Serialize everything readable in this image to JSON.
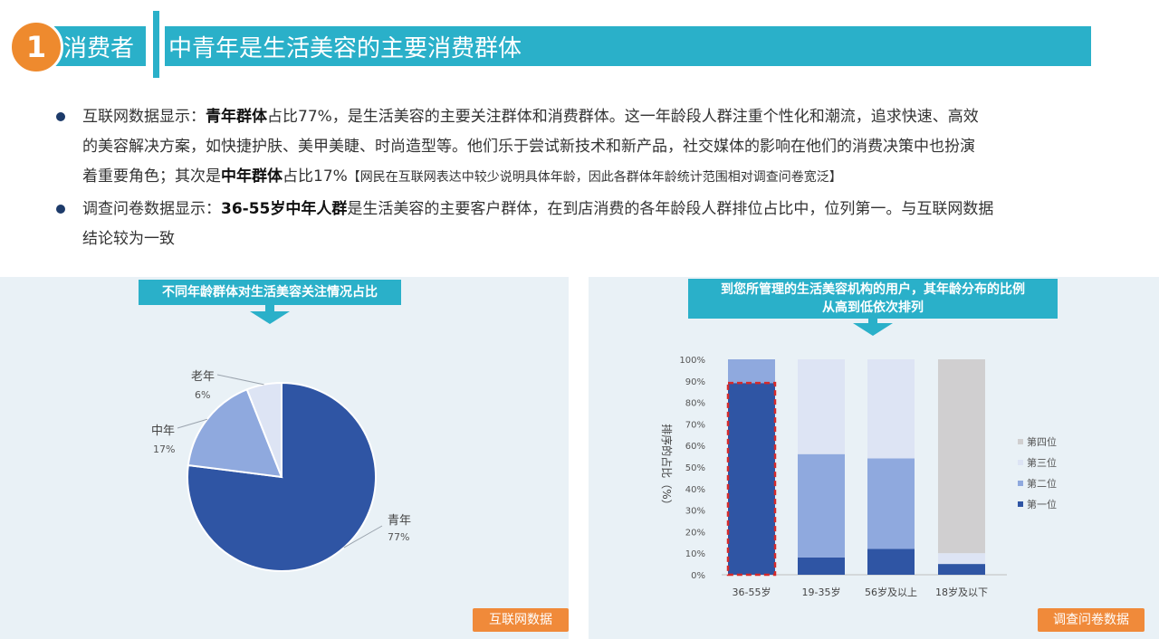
{
  "header": {
    "badge_number": "1",
    "section": "消费者",
    "title": "中青年是生活美容的主要消费群体"
  },
  "paragraphs": {
    "p1_prefix": "互联网数据显示：",
    "p1_bold1": "青年群体",
    "p1_mid1": "占比77%，是生活美容的主要关注群体和消费群体。这一年龄段人群注重个性化和潮流，追求快速、高效",
    "p1_line2": "的美容解决方案，如快捷护肤、美甲美睫、时尚造型等。他们乐于尝试新技术和新产品，社交媒体的影响在他们的消费决策中也扮演",
    "p1_line3_pre": "着重要角色；其次是",
    "p1_bold2": "中年群体",
    "p1_line3_mid": "占比17%",
    "p1_note": "【网民在互联网表达中较少说明具体年龄，因此各群体年龄统计范围相对调查问卷宽泛】",
    "p2_prefix": "调查问卷数据显示：",
    "p2_bold": "36-55岁中年人群",
    "p2_rest": "是生活美容的主要客户群体，在到店消费的各年龄段人群排位占比中，位列第一。与互联网数据",
    "p2_line2": "结论较为一致"
  },
  "left_panel": {
    "banner": "不同年龄群体对生活美容关注情况占比",
    "tag": "互联网数据"
  },
  "right_panel": {
    "banner_line1": "到您所管理的生活美容机构的用户，其年龄分布的比例",
    "banner_line2": "从高到低依次排列",
    "tag": "调查问卷数据"
  },
  "colors": {
    "teal": "#2ab0c9",
    "orange": "#f08a3a",
    "first": "#2f55a4",
    "second": "#8fa9de",
    "third": "#dde4f4",
    "fourth": "#d0cfd0",
    "highlight": "#d62a2a"
  },
  "chart_data": [
    {
      "type": "pie",
      "categories": [
        "青年",
        "中年",
        "老年"
      ],
      "values": [
        77,
        17,
        6
      ],
      "labels": [
        "77%",
        "17%",
        "6%"
      ]
    },
    {
      "type": "bar",
      "stacked": true,
      "categories": [
        "36-55岁",
        "19-35岁",
        "56岁及以上",
        "18岁及以下"
      ],
      "ylabel": "排序的占比（%）",
      "ylim": [
        0,
        100
      ],
      "yticks": [
        "0%",
        "10%",
        "20%",
        "30%",
        "40%",
        "50%",
        "60%",
        "70%",
        "80%",
        "90%",
        "100%"
      ],
      "series": [
        {
          "name": "第一位",
          "values": [
            89,
            8,
            12,
            5
          ]
        },
        {
          "name": "第二位",
          "values": [
            11,
            48,
            42,
            0
          ]
        },
        {
          "name": "第三位",
          "values": [
            0,
            44,
            46,
            5
          ]
        },
        {
          "name": "第四位",
          "values": [
            0,
            0,
            0,
            90
          ]
        }
      ],
      "legend_order": [
        "第四位",
        "第三位",
        "第二位",
        "第一位"
      ],
      "legend_position": "right",
      "highlight_category": "36-55岁"
    }
  ]
}
